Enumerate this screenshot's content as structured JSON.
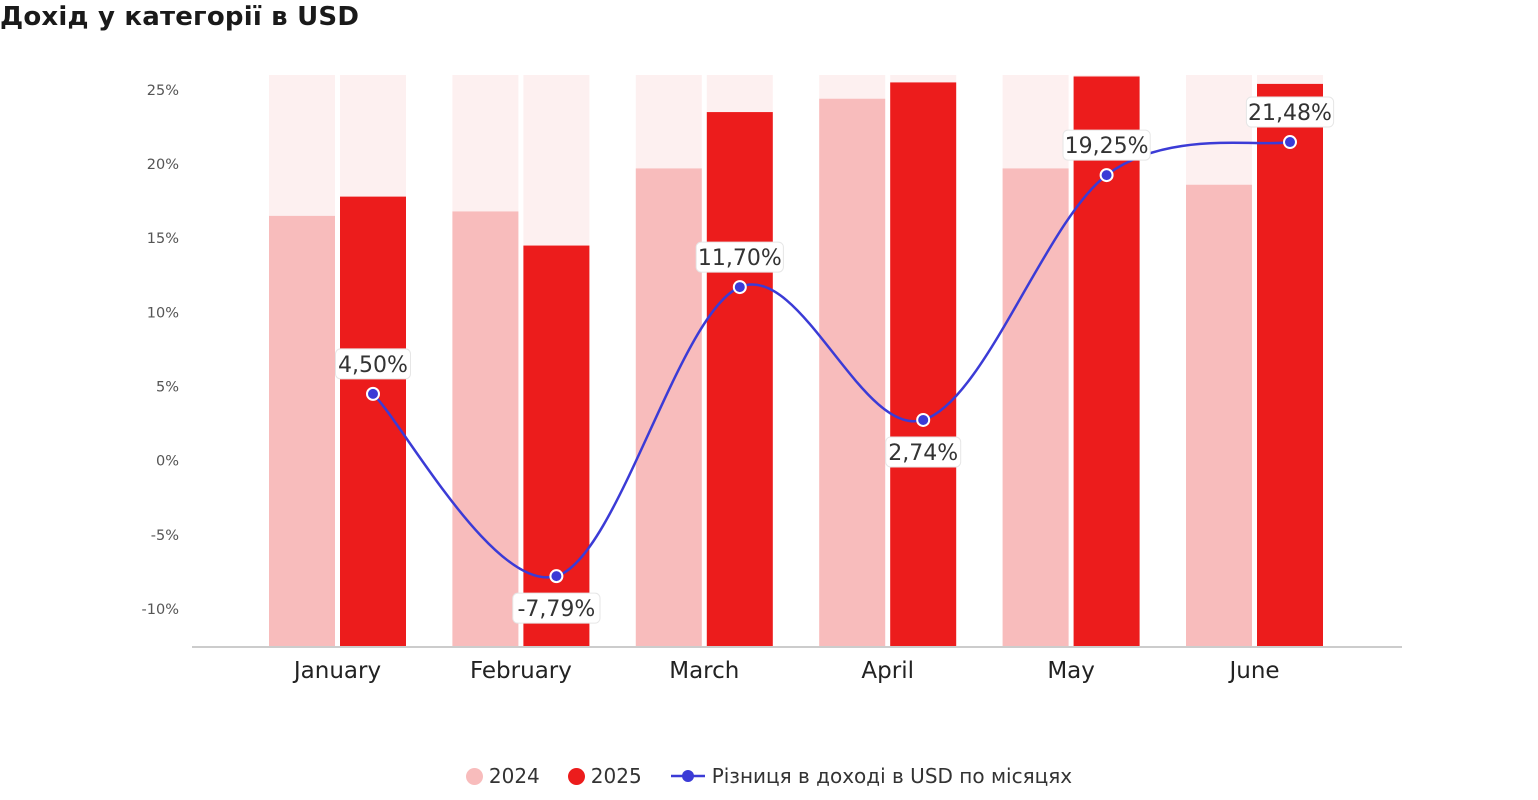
{
  "chart_title": "Дохід у категорії в USD",
  "chart_data": {
    "type": "bar",
    "title": "Дохід у категорії в USD",
    "categories": [
      "January",
      "February",
      "March",
      "April",
      "May",
      "June"
    ],
    "ylim": [
      -12.5,
      26
    ],
    "yticks": [
      25,
      20,
      15,
      10,
      5,
      0,
      -5,
      -10
    ],
    "ytick_labels": [
      "25%",
      "20%",
      "15%",
      "10%",
      "5%",
      "0%",
      "-5%",
      "-10%"
    ],
    "grid": false,
    "legend_position": "bottom-center",
    "series": [
      {
        "name": "2024",
        "type": "bar",
        "color": "#f8bcbc",
        "values": [
          16.5,
          16.8,
          19.7,
          24.4,
          19.7,
          18.6
        ]
      },
      {
        "name": "2025",
        "type": "bar",
        "color": "#ec1c1c",
        "values": [
          17.8,
          14.5,
          23.5,
          25.5,
          25.9,
          25.4
        ]
      },
      {
        "name": "Різниця в доході в USD по місяцях",
        "type": "line",
        "color": "#3b3bd6",
        "values": [
          4.5,
          -7.79,
          11.7,
          2.74,
          19.25,
          21.48
        ],
        "labels": [
          "4,50%",
          "-7,79%",
          "11,70%",
          "2,74%",
          "19,25%",
          "21,48%"
        ],
        "label_positions": [
          "above",
          "below",
          "above",
          "below",
          "above",
          "above"
        ]
      }
    ],
    "background_bar_color": "#fdf0f0"
  }
}
